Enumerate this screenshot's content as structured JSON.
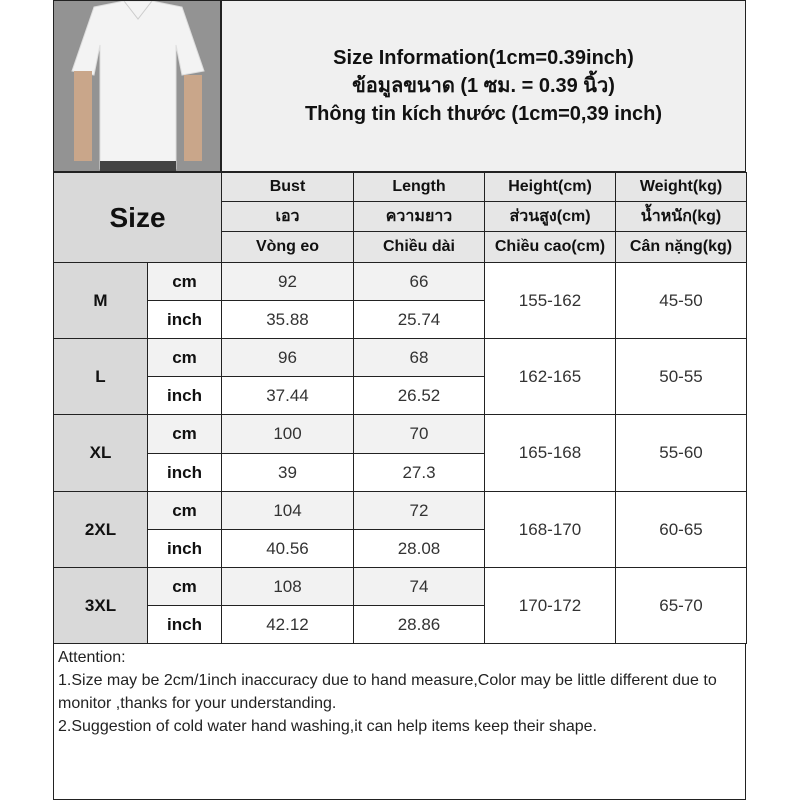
{
  "title": {
    "line1": "Size Information(1cm=0.39inch)",
    "line2": "ข้อมูลขนาด (1 ซม. = 0.39 นิ้ว)",
    "line3": "Thông tin kích thước (1cm=0,39 inch)"
  },
  "photo": {
    "icon": "polo-shirt-model-photo"
  },
  "header": {
    "size_label": "Size",
    "columns": [
      {
        "en": "Bust",
        "th": "เอว",
        "vi": "Vòng eo"
      },
      {
        "en": "Length",
        "th": "ความยาว",
        "vi": "Chiều dài"
      },
      {
        "en": "Height(cm)",
        "th": "ส่วนสูง(cm)",
        "vi": "Chiều cao(cm)"
      },
      {
        "en": "Weight(kg)",
        "th": "น้ำหนัก(kg)",
        "vi": "Cân nặng(kg)"
      }
    ]
  },
  "units": {
    "cm": "cm",
    "inch": "inch"
  },
  "rows": [
    {
      "size": "M",
      "bust_cm": "92",
      "bust_inch": "35.88",
      "length_cm": "66",
      "length_inch": "25.74",
      "height": "155-162",
      "weight": "45-50"
    },
    {
      "size": "L",
      "bust_cm": "96",
      "bust_inch": "37.44",
      "length_cm": "68",
      "length_inch": "26.52",
      "height": "162-165",
      "weight": "50-55"
    },
    {
      "size": "XL",
      "bust_cm": "100",
      "bust_inch": "39",
      "length_cm": "70",
      "length_inch": "27.3",
      "height": "165-168",
      "weight": "55-60"
    },
    {
      "size": "2XL",
      "bust_cm": "104",
      "bust_inch": "40.56",
      "length_cm": "72",
      "length_inch": "28.08",
      "height": "168-170",
      "weight": "60-65"
    },
    {
      "size": "3XL",
      "bust_cm": "108",
      "bust_inch": "42.12",
      "length_cm": "74",
      "length_inch": "28.86",
      "height": "170-172",
      "weight": "65-70"
    }
  ],
  "note": {
    "heading": "Attention:",
    "line1": "1.Size may be 2cm/1inch inaccuracy due to hand measure,Color may be little different due to monitor ,thanks for your understanding.",
    "line2": "2.Suggestion of cold water hand washing,it can help items keep their shape."
  }
}
